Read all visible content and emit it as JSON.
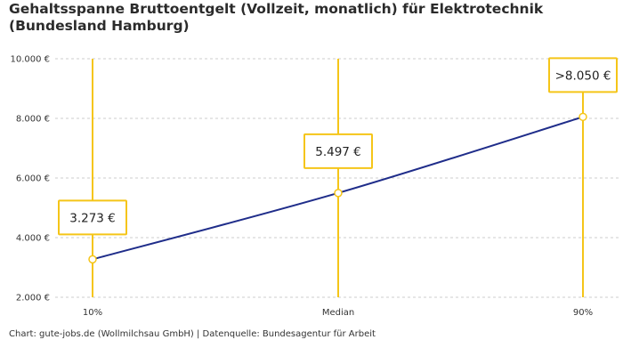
{
  "chart_data": {
    "type": "line",
    "title": "Gehaltsspanne Bruttoentgelt (Vollzeit, monatlich) für Elektrotechnik (Bundesland Hamburg)",
    "source": "Chart: gute-jobs.de (Wollmilchsau GmbH) | Datenquelle: Bundesagentur für Arbeit",
    "categories": [
      "10%",
      "Median",
      "90%"
    ],
    "values": [
      3273,
      5497,
      8050
    ],
    "data_labels": [
      "3.273 €",
      "5.497 €",
      ">8.050 €"
    ],
    "yticks": [
      2000,
      4000,
      6000,
      8000,
      10000
    ],
    "ytick_labels": [
      "2.000 €",
      "4.000 €",
      "6.000 €",
      "8.000 €",
      "10.000 €"
    ],
    "ylim": [
      2000,
      10000
    ],
    "grid": true,
    "colors": {
      "line": "#1f2d8a",
      "accent": "#f5c518",
      "grid": "#cccccc"
    }
  }
}
